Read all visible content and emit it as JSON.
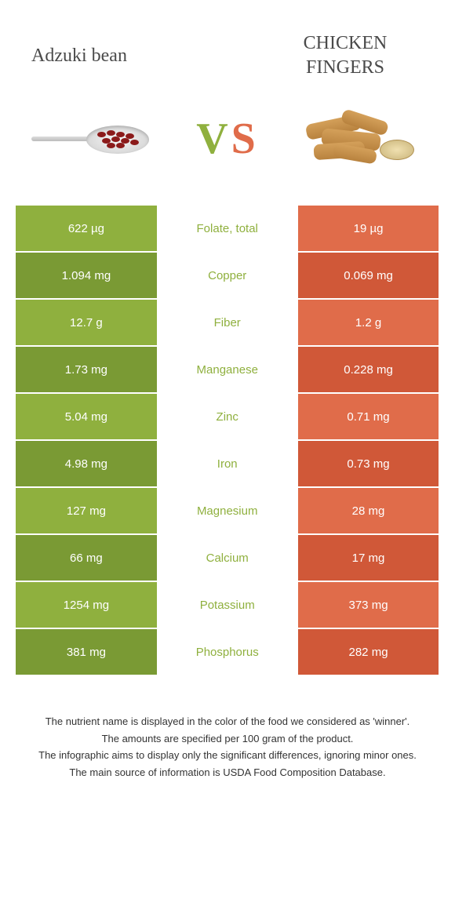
{
  "colors": {
    "left": "#8fb03e",
    "right": "#e06c4a",
    "left_dark": "#7a9a34",
    "right_dark": "#d05838"
  },
  "foods": {
    "left": "Adzuki bean",
    "right": "CHICKEN FINGERS"
  },
  "vs": {
    "v": "V",
    "s": "S"
  },
  "rows": [
    {
      "left": "622 µg",
      "label": "Folate, total",
      "right": "19 µg",
      "winner": "left"
    },
    {
      "left": "1.094 mg",
      "label": "Copper",
      "right": "0.069 mg",
      "winner": "left"
    },
    {
      "left": "12.7 g",
      "label": "Fiber",
      "right": "1.2 g",
      "winner": "left"
    },
    {
      "left": "1.73 mg",
      "label": "Manganese",
      "right": "0.228 mg",
      "winner": "left"
    },
    {
      "left": "5.04 mg",
      "label": "Zinc",
      "right": "0.71 mg",
      "winner": "left"
    },
    {
      "left": "4.98 mg",
      "label": "Iron",
      "right": "0.73 mg",
      "winner": "left"
    },
    {
      "left": "127 mg",
      "label": "Magnesium",
      "right": "28 mg",
      "winner": "left"
    },
    {
      "left": "66 mg",
      "label": "Calcium",
      "right": "17 mg",
      "winner": "left"
    },
    {
      "left": "1254 mg",
      "label": "Potassium",
      "right": "373 mg",
      "winner": "left"
    },
    {
      "left": "381 mg",
      "label": "Phosphorus",
      "right": "282 mg",
      "winner": "left"
    }
  ],
  "footer": [
    "The nutrient name is displayed in the color of the food we considered as 'winner'.",
    "The amounts are specified per 100 gram of the product.",
    "The infographic aims to display only the significant differences, ignoring minor ones.",
    "The main source of information is USDA Food Composition Database."
  ]
}
